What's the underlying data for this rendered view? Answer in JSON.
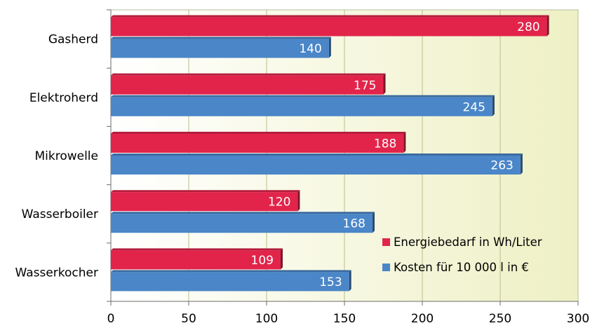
{
  "chart_data": {
    "type": "bar",
    "orientation": "horizontal",
    "categories": [
      "Gasherd",
      "Elektroherd",
      "Mikrowelle",
      "Wasserboiler",
      "Wasserkocher"
    ],
    "series": [
      {
        "name": "Energiebedarf in Wh/Liter",
        "values": [
          280,
          175,
          188,
          120,
          109
        ],
        "color": "#e2244b"
      },
      {
        "name": "Kosten für 10 000 l in €",
        "values": [
          140,
          245,
          263,
          168,
          153
        ],
        "color": "#4a86c8"
      }
    ],
    "xlim": [
      0,
      300
    ],
    "x_ticks": [
      0,
      50,
      100,
      150,
      200,
      250,
      300
    ],
    "grid": true,
    "legend_position": "bottom-right",
    "data_labels": true,
    "background_gradient": [
      "#ffffff",
      "#eef0c4"
    ]
  }
}
